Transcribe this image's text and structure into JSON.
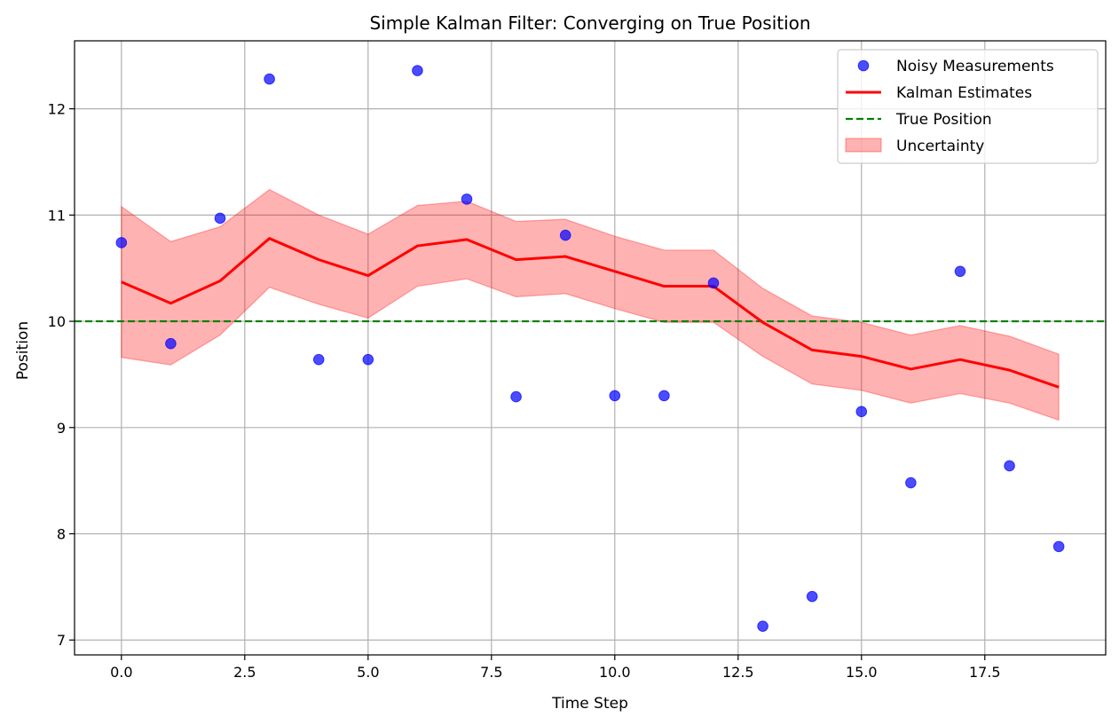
{
  "chart_data": {
    "type": "line",
    "title": "Simple Kalman Filter: Converging on True Position",
    "xlabel": "Time Step",
    "ylabel": "Position",
    "xlim": [
      -0.95,
      19.95
    ],
    "ylim": [
      6.86,
      12.64
    ],
    "xticks": [
      0.0,
      2.5,
      5.0,
      7.5,
      10.0,
      12.5,
      15.0,
      17.5
    ],
    "xtick_labels": [
      "0.0",
      "2.5",
      "5.0",
      "7.5",
      "10.0",
      "12.5",
      "15.0",
      "17.5"
    ],
    "yticks": [
      7,
      8,
      9,
      10,
      11,
      12
    ],
    "ytick_labels": [
      "7",
      "8",
      "9",
      "10",
      "11",
      "12"
    ],
    "grid": true,
    "legend_position": "top-right",
    "x": [
      0,
      1,
      2,
      3,
      4,
      5,
      6,
      7,
      8,
      9,
      10,
      11,
      12,
      13,
      14,
      15,
      16,
      17,
      18,
      19
    ],
    "series": [
      {
        "name": "Noisy Measurements",
        "kind": "scatter",
        "color": "#0000ff",
        "values": [
          10.74,
          9.79,
          10.97,
          12.28,
          9.64,
          9.64,
          12.36,
          11.15,
          9.29,
          10.81,
          9.3,
          9.3,
          10.36,
          7.13,
          7.41,
          9.15,
          8.48,
          10.47,
          8.64,
          7.88
        ]
      },
      {
        "name": "Kalman Estimates",
        "kind": "line",
        "color": "#ff0000",
        "values": [
          10.37,
          10.17,
          10.38,
          10.78,
          10.58,
          10.43,
          10.71,
          10.77,
          10.58,
          10.61,
          10.47,
          10.33,
          10.33,
          9.99,
          9.73,
          9.67,
          9.55,
          9.64,
          9.54,
          9.38
        ]
      },
      {
        "name": "True Position",
        "kind": "hline",
        "color": "#008000",
        "value": 10.0
      },
      {
        "name": "Uncertainty",
        "kind": "band",
        "color": "#ff0000",
        "lower": [
          9.66,
          9.59,
          9.87,
          10.32,
          10.16,
          10.03,
          10.33,
          10.4,
          10.23,
          10.26,
          10.12,
          9.99,
          9.99,
          9.67,
          9.41,
          9.35,
          9.23,
          9.32,
          9.23,
          9.07
        ],
        "upper": [
          11.08,
          10.75,
          10.89,
          11.24,
          11.0,
          10.82,
          11.09,
          11.13,
          10.94,
          10.96,
          10.8,
          10.67,
          10.67,
          10.31,
          10.05,
          9.99,
          9.87,
          9.96,
          9.86,
          9.69
        ]
      }
    ]
  }
}
